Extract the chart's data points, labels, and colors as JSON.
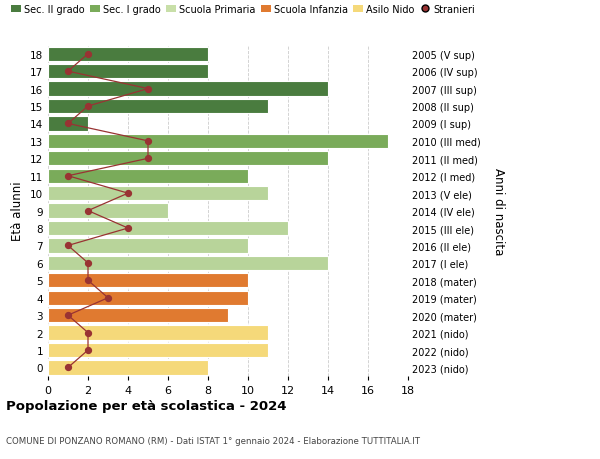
{
  "ages": [
    18,
    17,
    16,
    15,
    14,
    13,
    12,
    11,
    10,
    9,
    8,
    7,
    6,
    5,
    4,
    3,
    2,
    1,
    0
  ],
  "right_labels": [
    "2005 (V sup)",
    "2006 (IV sup)",
    "2007 (III sup)",
    "2008 (II sup)",
    "2009 (I sup)",
    "2010 (III med)",
    "2011 (II med)",
    "2012 (I med)",
    "2013 (V ele)",
    "2014 (IV ele)",
    "2015 (III ele)",
    "2016 (II ele)",
    "2017 (I ele)",
    "2018 (mater)",
    "2019 (mater)",
    "2020 (mater)",
    "2021 (nido)",
    "2022 (nido)",
    "2023 (nido)"
  ],
  "bar_values": [
    8,
    8,
    14,
    11,
    2,
    17,
    14,
    10,
    11,
    6,
    12,
    10,
    14,
    10,
    10,
    9,
    11,
    11,
    8
  ],
  "bar_colors": [
    "#4a7c3f",
    "#4a7c3f",
    "#4a7c3f",
    "#4a7c3f",
    "#4a7c3f",
    "#7aab5a",
    "#7aab5a",
    "#7aab5a",
    "#b8d49a",
    "#b8d49a",
    "#b8d49a",
    "#b8d49a",
    "#b8d49a",
    "#e07a30",
    "#e07a30",
    "#e07a30",
    "#f5d97a",
    "#f5d97a",
    "#f5d97a"
  ],
  "stranieri_values": [
    2,
    1,
    5,
    2,
    1,
    5,
    5,
    1,
    4,
    2,
    4,
    1,
    2,
    2,
    3,
    1,
    2,
    2,
    1
  ],
  "title": "Popolazione per età scolastica - 2024",
  "subtitle": "COMUNE DI PONZANO ROMANO (RM) - Dati ISTAT 1° gennaio 2024 - Elaborazione TUTTITALIA.IT",
  "ylabel": "Età alunni",
  "right_ylabel": "Anni di nascita",
  "xlim": [
    0,
    18
  ],
  "xticks": [
    0,
    2,
    4,
    6,
    8,
    10,
    12,
    14,
    16,
    18
  ],
  "legend_labels": [
    "Sec. II grado",
    "Sec. I grado",
    "Scuola Primaria",
    "Scuola Infanzia",
    "Asilo Nido",
    "Stranieri"
  ],
  "legend_colors": [
    "#4a7c3f",
    "#7aab5a",
    "#c8dfa8",
    "#e07a30",
    "#f5d97a",
    "#cc2222"
  ],
  "stranieri_line_color": "#993333",
  "background_color": "#ffffff",
  "grid_color": "#cccccc"
}
